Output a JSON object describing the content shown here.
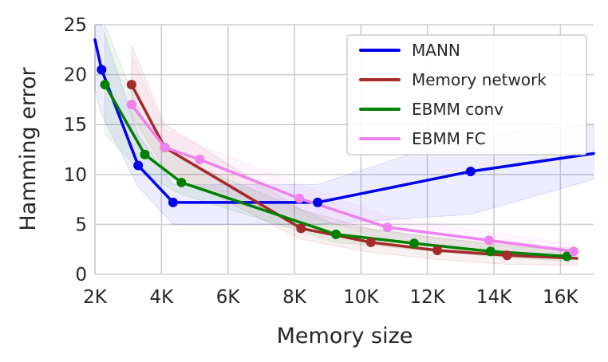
{
  "chart_data": {
    "type": "line",
    "title": "",
    "xlabel": "Memory size",
    "ylabel": "Hamming error",
    "xlim": [
      2000,
      17000
    ],
    "ylim": [
      0,
      25
    ],
    "xticks": [
      2000,
      4000,
      6000,
      8000,
      10000,
      12000,
      14000,
      16000
    ],
    "xtick_labels": [
      "2K",
      "4K",
      "6K",
      "8K",
      "10K",
      "12K",
      "14K",
      "16K"
    ],
    "yticks": [
      0,
      5,
      10,
      15,
      20,
      25
    ],
    "ytick_labels": [
      "0",
      "5",
      "10",
      "15",
      "20",
      "25"
    ],
    "grid": true,
    "legend_position": "top-right",
    "series": [
      {
        "name": "MANN",
        "color": "#0000ee",
        "x": [
          2200,
          3300,
          4350,
          8700,
          13300
        ],
        "y": [
          20.5,
          10.9,
          7.2,
          7.2,
          10.3
        ],
        "line_x": [
          1950,
          2200,
          3300,
          4350,
          8700,
          13300,
          17000
        ],
        "line_y": [
          23.5,
          20.5,
          10.9,
          7.2,
          7.2,
          10.3,
          12.1
        ],
        "band_x": [
          1950,
          2200,
          3300,
          4350,
          8700,
          13300,
          17000
        ],
        "band_low": [
          18.5,
          16.0,
          8.8,
          5.0,
          5.0,
          6.0,
          9.5
        ],
        "band_high": [
          25.0,
          25.0,
          14.0,
          9.0,
          9.0,
          14.0,
          15.0
        ]
      },
      {
        "name": "Memory network",
        "color": "#a52a2a",
        "x": [
          3100,
          4100,
          8200,
          10300,
          12300,
          14400
        ],
        "y": [
          19.0,
          12.7,
          4.6,
          3.2,
          2.4,
          1.9
        ],
        "line_x": [
          3100,
          4100,
          8200,
          10300,
          12300,
          14400,
          16500
        ],
        "line_y": [
          19.0,
          12.7,
          4.6,
          3.2,
          2.4,
          1.9,
          1.6
        ],
        "band_x": [
          3100,
          4100,
          8200,
          10300,
          12300,
          14400,
          16500
        ],
        "band_low": [
          16.0,
          10.5,
          3.5,
          2.2,
          1.5,
          1.0,
          0.9
        ],
        "band_high": [
          23.0,
          15.0,
          6.5,
          4.5,
          3.6,
          3.0,
          2.6
        ]
      },
      {
        "name": "EBMM conv",
        "color": "#008000",
        "x": [
          2300,
          3500,
          4600,
          9250,
          11600,
          13900,
          16200
        ],
        "y": [
          19.0,
          12.0,
          9.2,
          4.0,
          3.1,
          2.3,
          1.8
        ],
        "line_x": [
          2300,
          3500,
          4600,
          9250,
          11600,
          13900,
          16200
        ],
        "line_y": [
          19.0,
          12.0,
          9.2,
          4.0,
          3.1,
          2.3,
          1.8
        ],
        "band_x": [
          2300,
          3500,
          4600,
          9250,
          11600,
          13900,
          16200
        ],
        "band_low": [
          14.0,
          10.0,
          8.0,
          3.2,
          2.5,
          1.8,
          1.3
        ],
        "band_high": [
          25.0,
          15.0,
          11.5,
          5.0,
          4.0,
          3.0,
          2.4
        ]
      },
      {
        "name": "EBMM FC",
        "color": "#ee82ee",
        "x": [
          3100,
          4100,
          5150,
          8150,
          10800,
          13850,
          16400
        ],
        "y": [
          17.0,
          12.7,
          11.5,
          7.6,
          4.7,
          3.4,
          2.3
        ],
        "line_x": [
          3100,
          4100,
          5150,
          8150,
          10800,
          13850,
          16400
        ],
        "line_y": [
          17.0,
          12.7,
          11.5,
          7.6,
          4.7,
          3.4,
          2.3
        ],
        "band_x": [
          3100,
          4100,
          5150,
          8150,
          10800,
          13850,
          16400
        ],
        "band_low": [
          14.0,
          10.8,
          9.0,
          6.0,
          3.5,
          2.6,
          1.7
        ],
        "band_high": [
          22.0,
          14.5,
          13.0,
          9.0,
          5.8,
          4.2,
          3.0
        ]
      }
    ]
  }
}
